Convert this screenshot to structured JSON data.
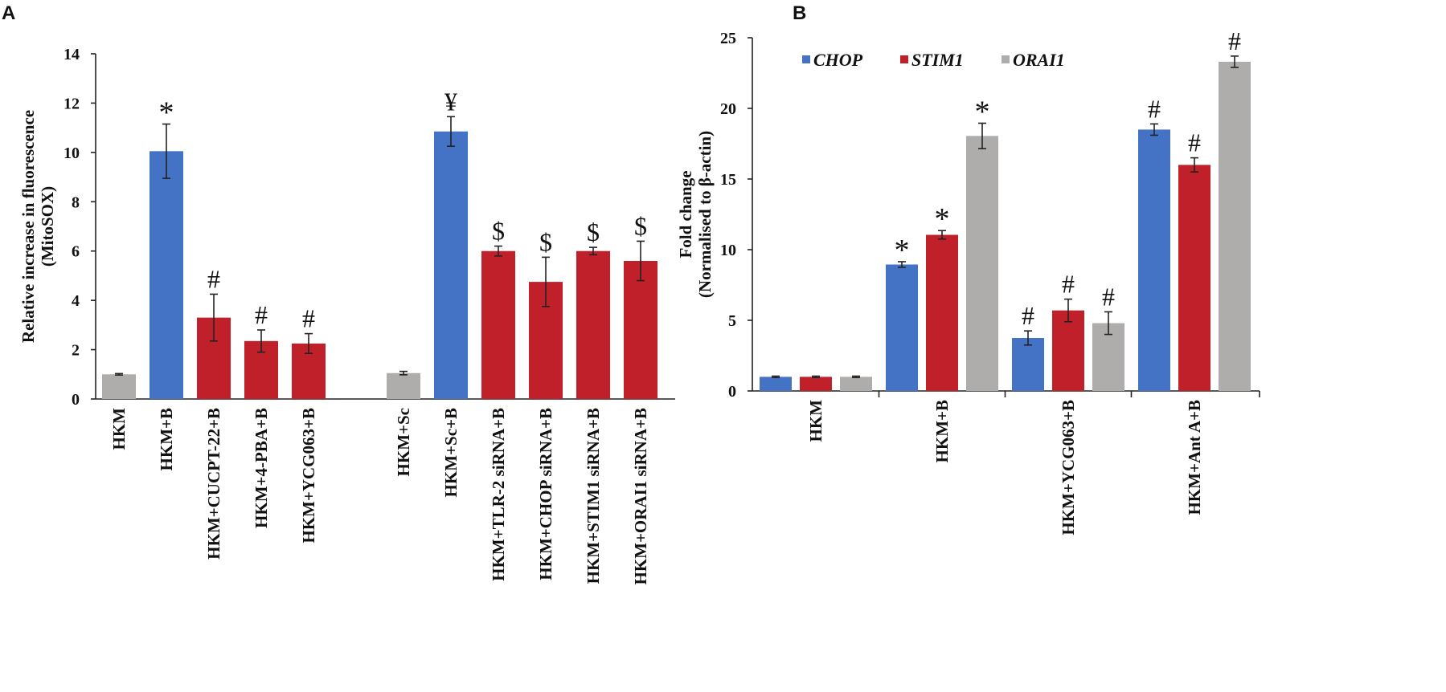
{
  "panels": [
    {
      "letter": "A",
      "chart_data": {
        "type": "bar",
        "title": "",
        "xlabel": "",
        "ylabel_lines": [
          "Relative increase in fluorescence",
          "(MitoSOX)"
        ],
        "ylim": [
          0,
          14
        ],
        "yticks": [
          0,
          2,
          4,
          6,
          8,
          10,
          12,
          14
        ],
        "grid": false,
        "legend": null,
        "colors": {
          "control": "#afacac",
          "stimulated": "#4472c4",
          "treated": "#c0202a"
        },
        "categories": [
          "HKM",
          "HKM+B",
          "HKM+CUCPT-22+B",
          "HKM+4-PBA+B",
          "HKM+YCG063+B",
          "HKM+Sc",
          "HKM+Sc+B",
          "HKM+TLR-2 siRNA+B",
          "HKM+CHOP siRNA+B",
          "HKM+STIM1 siRNA+B",
          "HKM+ORAI1 siRNA+B"
        ],
        "values": [
          1.0,
          10.05,
          3.3,
          2.35,
          2.25,
          1.05,
          10.85,
          6.0,
          4.75,
          6.0,
          5.6
        ],
        "errors": [
          0.03,
          1.1,
          0.95,
          0.45,
          0.4,
          0.07,
          0.6,
          0.2,
          1.0,
          0.15,
          0.8
        ],
        "bar_color_keys": [
          "control",
          "stimulated",
          "treated",
          "treated",
          "treated",
          "control",
          "stimulated",
          "treated",
          "treated",
          "treated",
          "treated"
        ],
        "annotations": [
          "",
          "*",
          "#",
          "#",
          "#",
          "",
          "¥",
          "$",
          "$",
          "$",
          "$"
        ]
      }
    },
    {
      "letter": "B",
      "chart_data": {
        "type": "bar",
        "title": "",
        "xlabel": "",
        "ylabel_lines": [
          "Fold change",
          "(Normalised to β-actin)"
        ],
        "ylim": [
          0,
          25
        ],
        "yticks": [
          0,
          5,
          10,
          15,
          20,
          25
        ],
        "grid": false,
        "legend": "top-left",
        "categories": [
          "HKM",
          "HKM+B",
          "HKM+YCG063+B",
          "HKM+Ant A+B"
        ],
        "series": [
          {
            "name": "CHOP",
            "color": "#4472c4",
            "values": [
              1.0,
              8.95,
              3.75,
              18.5
            ],
            "errors": [
              0.05,
              0.2,
              0.5,
              0.4
            ],
            "annotations": [
              "",
              "*",
              "#",
              "#"
            ]
          },
          {
            "name": "STIM1",
            "color": "#c0202a",
            "values": [
              1.0,
              11.05,
              5.7,
              16.0
            ],
            "errors": [
              0.05,
              0.3,
              0.8,
              0.5
            ],
            "annotations": [
              "",
              "*",
              "#",
              "#"
            ]
          },
          {
            "name": "ORAI1",
            "color": "#afacac",
            "values": [
              1.0,
              18.05,
              4.8,
              23.3
            ],
            "errors": [
              0.05,
              0.9,
              0.8,
              0.4
            ],
            "annotations": [
              "",
              "*",
              "#",
              "#"
            ]
          }
        ]
      }
    }
  ]
}
